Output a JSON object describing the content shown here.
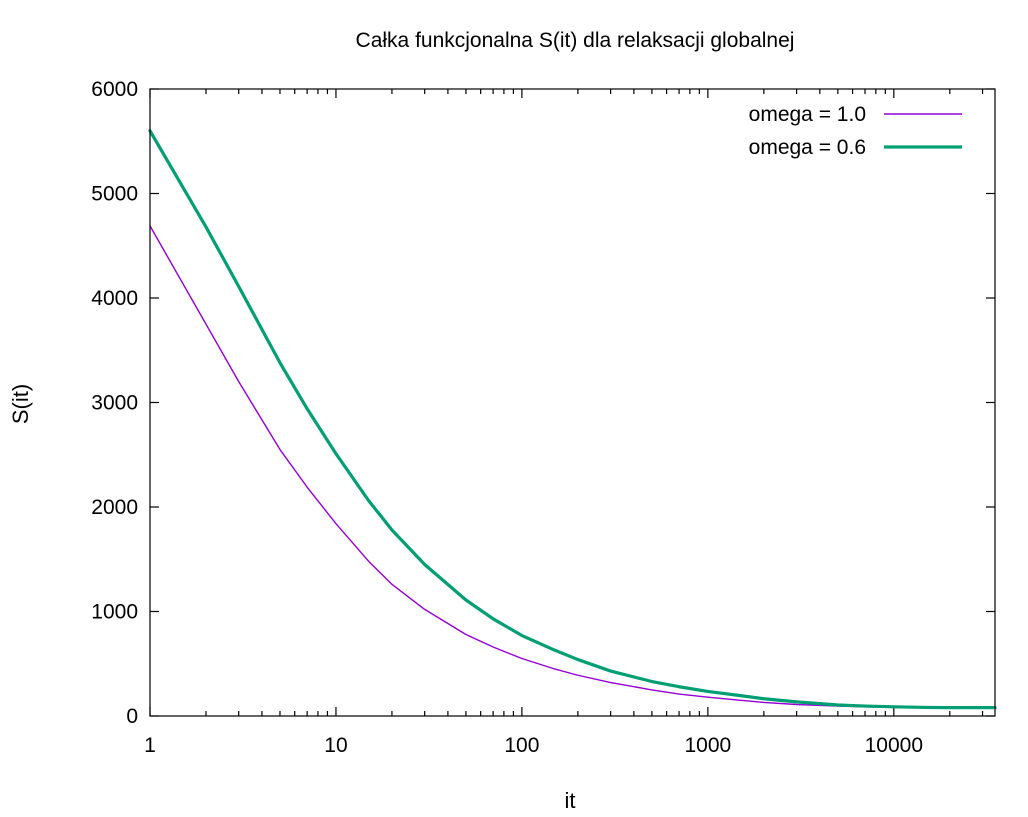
{
  "chart_data": {
    "type": "line",
    "title": "Całka funkcjonalna S(it) dla relaksacji globalnej",
    "xlabel": "it",
    "ylabel": "S(it)",
    "x_scale": "log",
    "xlim": [
      1,
      35000
    ],
    "ylim": [
      0,
      6000
    ],
    "x_ticks": [
      1,
      10,
      100,
      1000,
      10000
    ],
    "x_tick_labels": [
      "1",
      "10",
      "100",
      "1000",
      "10000"
    ],
    "y_ticks": [
      0,
      1000,
      2000,
      3000,
      4000,
      5000,
      6000
    ],
    "y_tick_labels": [
      "0",
      "1000",
      "2000",
      "3000",
      "4000",
      "5000",
      "6000"
    ],
    "grid": false,
    "legend_position": "top-right",
    "series": [
      {
        "name": "omega = 1.0",
        "color": "#9400d3",
        "x": [
          1,
          2,
          3,
          5,
          7,
          10,
          15,
          20,
          30,
          50,
          70,
          100,
          150,
          200,
          300,
          500,
          700,
          1000,
          1500,
          2000,
          3000,
          5000,
          7000,
          10000,
          13000
        ],
        "values": [
          4690,
          3750,
          3200,
          2550,
          2190,
          1840,
          1480,
          1260,
          1020,
          780,
          660,
          550,
          450,
          390,
          320,
          250,
          210,
          180,
          150,
          130,
          110,
          95,
          88,
          82,
          80
        ]
      },
      {
        "name": "omega = 0.6",
        "color": "#009e73",
        "x": [
          1,
          2,
          3,
          5,
          7,
          10,
          15,
          20,
          30,
          50,
          70,
          100,
          150,
          200,
          300,
          500,
          700,
          1000,
          1500,
          2000,
          3000,
          5000,
          7000,
          10000,
          15000,
          20000,
          35000
        ],
        "values": [
          5600,
          4680,
          4110,
          3380,
          2940,
          2510,
          2060,
          1780,
          1450,
          1110,
          930,
          770,
          630,
          540,
          430,
          330,
          280,
          235,
          195,
          165,
          135,
          105,
          95,
          88,
          82,
          80,
          80
        ]
      }
    ]
  }
}
